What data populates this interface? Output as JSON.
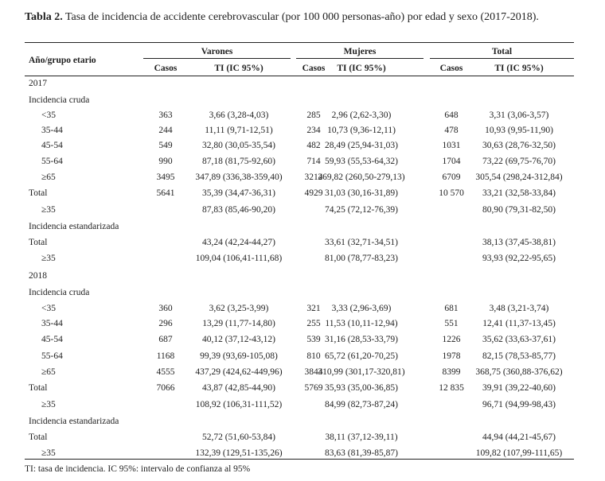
{
  "caption": {
    "label": "Tabla 2.",
    "text": "Tasa de incidencia de accidente cerebrovascular (por 100 000 personas-año) por edad y sexo (2017-2018)."
  },
  "header": {
    "row_label": "Año/grupo etario",
    "groups": [
      "Varones",
      "Mujeres",
      "Total"
    ],
    "sub": [
      "Casos",
      "TI (IC 95%)",
      "Casos",
      "TI (IC 95%)",
      "Casos",
      "TI (IC 95%)"
    ]
  },
  "rows": [
    {
      "label": "2017",
      "kind": "year"
    },
    {
      "label": "Incidencia cruda",
      "kind": "section"
    },
    {
      "label": "<35",
      "kind": "sub",
      "cells": [
        "363",
        "3,66 (3,28-4,03)",
        "285",
        "2,96 (2,62-3,30)",
        "648",
        "3,31 (3,06-3,57)"
      ]
    },
    {
      "label": "35-44",
      "kind": "sub",
      "cells": [
        "244",
        "11,11 (9,71-12,51)",
        "234",
        "10,73 (9,36-12,11)",
        "478",
        "10,93 (9,95-11,90)"
      ]
    },
    {
      "label": "45-54",
      "kind": "sub",
      "cells": [
        "549",
        "32,80 (30,05-35,54)",
        "482",
        "28,49 (25,94-31,03)",
        "1031",
        "30,63 (28,76-32,50)"
      ]
    },
    {
      "label": "55-64",
      "kind": "sub",
      "cells": [
        "990",
        "87,18 (81,75-92,60)",
        "714",
        "59,93 (55,53-64,32)",
        "1704",
        "73,22 (69,75-76,70)"
      ]
    },
    {
      "label": "≥65",
      "kind": "sub",
      "cells": [
        "3495",
        "347,89 (336,38-359,40)",
        "3214",
        "269,82 (260,50-279,13)",
        "6709",
        "305,54 (298,24-312,84)"
      ]
    },
    {
      "label": "Total",
      "kind": "section",
      "cells": [
        "5641",
        "35,39 (34,47-36,31)",
        "4929",
        "31,03 (30,16-31,89)",
        "10 570",
        "33,21 (32,58-33,84)"
      ]
    },
    {
      "label": "≥35",
      "kind": "sub",
      "cells": [
        "",
        "87,83 (85,46-90,20)",
        "",
        "74,25 (72,12-76,39)",
        "",
        "80,90 (79,31-82,50)"
      ]
    },
    {
      "label": "Incidencia estandarizada",
      "kind": "section"
    },
    {
      "label": "Total",
      "kind": "section",
      "cells": [
        "",
        "43,24 (42,24-44,27)",
        "",
        "33,61 (32,71-34,51)",
        "",
        "38,13 (37,45-38,81)"
      ]
    },
    {
      "label": "≥35",
      "kind": "sub",
      "cells": [
        "",
        "109,04 (106,41-111,68)",
        "",
        "81,00 (78,77-83,23)",
        "",
        "93,93 (92,22-95,65)"
      ]
    },
    {
      "label": "2018",
      "kind": "year"
    },
    {
      "label": "Incidencia cruda",
      "kind": "section"
    },
    {
      "label": "<35",
      "kind": "sub",
      "cells": [
        "360",
        "3,62 (3,25-3,99)",
        "321",
        "3,33 (2,96-3,69)",
        "681",
        "3,48 (3,21-3,74)"
      ]
    },
    {
      "label": "35-44",
      "kind": "sub",
      "cells": [
        "296",
        "13,29 (11,77-14,80)",
        "255",
        "11,53 (10,11-12,94)",
        "551",
        "12,41 (11,37-13,45)"
      ]
    },
    {
      "label": "45-54",
      "kind": "sub",
      "cells": [
        "687",
        "40,12 (37,12-43,12)",
        "539",
        "31,16 (28,53-33,79)",
        "1226",
        "35,62 (33,63-37,61)"
      ]
    },
    {
      "label": "55-64",
      "kind": "sub",
      "cells": [
        "1168",
        "99,39 (93,69-105,08)",
        "810",
        "65,72 (61,20-70,25)",
        "1978",
        "82,15 (78,53-85,77)"
      ]
    },
    {
      "label": "≥65",
      "kind": "sub",
      "cells": [
        "4555",
        "437,29 (424,62-449,96)",
        "3844",
        "310,99 (301,17-320,81)",
        "8399",
        "368,75 (360,88-376,62)"
      ]
    },
    {
      "label": "Total",
      "kind": "section",
      "cells": [
        "7066",
        "43,87 (42,85-44,90)",
        "5769",
        "35,93 (35,00-36,85)",
        "12 835",
        "39,91 (39,22-40,60)"
      ]
    },
    {
      "label": "≥35",
      "kind": "sub",
      "cells": [
        "",
        "108,92 (106,31-111,52)",
        "",
        "84,99 (82,73-87,24)",
        "",
        "96,71 (94,99-98,43)"
      ]
    },
    {
      "label": "Incidencia estandarizada",
      "kind": "section"
    },
    {
      "label": "Total",
      "kind": "section",
      "cells": [
        "",
        "52,72 (51,60-53,84)",
        "",
        "38,11 (37,12-39,11)",
        "",
        "44,94 (44,21-45,67)"
      ]
    },
    {
      "label": "≥35",
      "kind": "sub",
      "cells": [
        "",
        "132,39 (129,51-135,26)",
        "",
        "83,63 (81,39-85,87)",
        "",
        "109,82 (107,99-111,65)"
      ]
    }
  ],
  "footnote": "TI: tasa de incidencia. IC 95%: intervalo de confianza al 95%"
}
